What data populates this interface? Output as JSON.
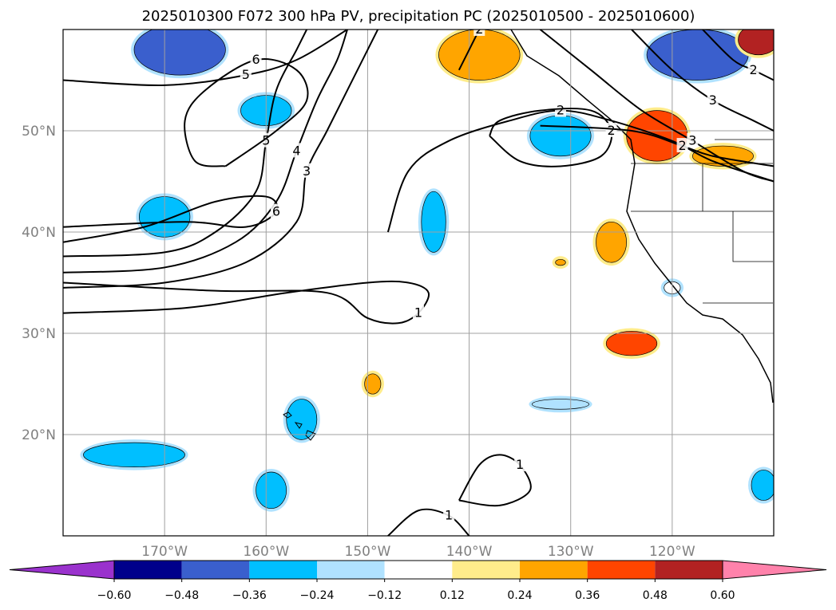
{
  "chart_data": {
    "type": "contour-map",
    "title": "2025010300 F072 300 hPa PV, precipitation PC (2025010500 - 2025010600)",
    "map": {
      "lon_range": [
        -180,
        -110
      ],
      "lat_range": [
        10,
        60
      ],
      "lon_ticks": [
        -170,
        -160,
        -150,
        -140,
        -130,
        -120
      ],
      "lon_tick_labels": [
        "170°W",
        "160°W",
        "150°W",
        "140°W",
        "130°W",
        "120°W"
      ],
      "lat_ticks": [
        20,
        30,
        40,
        50
      ],
      "lat_tick_labels": [
        "20°N",
        "30°N",
        "40°N",
        "50°N"
      ],
      "grid": true
    },
    "colorbar": {
      "levels": [
        -0.6,
        -0.48,
        -0.36,
        -0.24,
        -0.12,
        0.12,
        0.24,
        0.36,
        0.48,
        0.6
      ],
      "tick_labels": [
        "−0.60",
        "−0.48",
        "−0.36",
        "−0.24",
        "−0.12",
        "0.12",
        "0.24",
        "0.36",
        "0.48",
        "0.60"
      ],
      "colors": [
        "#9a32cd",
        "#00008b",
        "#3a5fcd",
        "#00bfff",
        "#b0e2ff",
        "#ffffff",
        "#ffec8b",
        "#ffa500",
        "#ff4500",
        "#b22222",
        "#ff82ab"
      ],
      "extend": "both"
    },
    "pv_contours": [
      {
        "level": 1,
        "label": "1",
        "points": [
          [
            -180,
            32
          ],
          [
            -168,
            32.5
          ],
          [
            -158,
            34
          ],
          [
            -150,
            35
          ],
          [
            -146,
            35
          ],
          [
            -144,
            34
          ],
          [
            -145,
            32
          ],
          [
            -147,
            31
          ],
          [
            -150,
            31.5
          ],
          [
            -154,
            34
          ],
          [
            -165,
            34.2
          ],
          [
            -180,
            35
          ]
        ]
      },
      {
        "level": 3,
        "label": "3",
        "points": [
          [
            -180,
            34.5
          ],
          [
            -170,
            35
          ],
          [
            -162,
            37
          ],
          [
            -157,
            41
          ],
          [
            -156,
            46
          ],
          [
            -154,
            50
          ],
          [
            -152,
            54
          ],
          [
            -150,
            58
          ],
          [
            -149,
            60
          ]
        ]
      },
      {
        "level": 4,
        "label": "4",
        "points": [
          [
            -180,
            36
          ],
          [
            -170,
            36.5
          ],
          [
            -163,
            39
          ],
          [
            -159,
            43
          ],
          [
            -157,
            48
          ],
          [
            -155,
            53
          ],
          [
            -153,
            57
          ],
          [
            -152,
            60
          ]
        ]
      },
      {
        "level": 5,
        "label": "5",
        "points": [
          [
            -180,
            37.6
          ],
          [
            -170,
            38
          ],
          [
            -165,
            40
          ],
          [
            -161,
            44
          ],
          [
            -160,
            49
          ],
          [
            -159,
            54
          ],
          [
            -157,
            58
          ],
          [
            -156,
            60
          ]
        ]
      },
      {
        "level": 6,
        "label": "6",
        "points": [
          [
            -180,
            39
          ],
          [
            -172,
            40.5
          ],
          [
            -165,
            43
          ],
          [
            -160,
            43.5
          ],
          [
            -159,
            42
          ],
          [
            -162,
            40.5
          ],
          [
            -168,
            41
          ],
          [
            -180,
            40.5
          ]
        ]
      },
      {
        "level": 6,
        "label": "6",
        "points": [
          [
            -164,
            46.5
          ],
          [
            -159,
            50
          ],
          [
            -156,
            53
          ],
          [
            -157,
            56
          ],
          [
            -161,
            57
          ],
          [
            -166,
            54
          ],
          [
            -168,
            51
          ],
          [
            -167,
            47
          ],
          [
            -164,
            46.5
          ]
        ]
      },
      {
        "level": 5,
        "label": "5",
        "points": [
          [
            -180,
            55
          ],
          [
            -170,
            54.5
          ],
          [
            -162,
            55.5
          ],
          [
            -157,
            57
          ],
          [
            -152,
            60
          ]
        ]
      },
      {
        "level": 2,
        "label": "2",
        "points": [
          [
            -148,
            40
          ],
          [
            -146,
            46
          ],
          [
            -142,
            49
          ],
          [
            -136,
            51
          ],
          [
            -131,
            52
          ],
          [
            -126,
            51
          ],
          [
            -120,
            49
          ],
          [
            -116,
            47
          ],
          [
            -110,
            45
          ]
        ]
      },
      {
        "level": 2,
        "label": "2",
        "points": [
          [
            -141,
            56
          ],
          [
            -139,
            60
          ]
        ]
      },
      {
        "level": 2,
        "label": "2",
        "points": [
          [
            -138,
            49.5
          ],
          [
            -135,
            47
          ],
          [
            -131,
            46.5
          ],
          [
            -127,
            47.5
          ],
          [
            -126,
            50
          ],
          [
            -128,
            52
          ],
          [
            -133,
            52
          ],
          [
            -137,
            51
          ],
          [
            -138,
            49.5
          ]
        ]
      },
      {
        "level": 2,
        "label": "2",
        "points": [
          [
            -133,
            50.5
          ],
          [
            -124,
            50
          ],
          [
            -119,
            48.5
          ],
          [
            -116,
            47.5
          ],
          [
            -110,
            46.5
          ]
        ]
      },
      {
        "level": 3,
        "label": "3",
        "points": [
          [
            -133,
            60
          ],
          [
            -128,
            56
          ],
          [
            -123,
            52
          ],
          [
            -118,
            49
          ],
          [
            -113,
            46
          ],
          [
            -110,
            45
          ]
        ]
      },
      {
        "level": 3,
        "label": "3",
        "points": [
          [
            -124,
            60
          ],
          [
            -120,
            56
          ],
          [
            -116,
            53
          ],
          [
            -112,
            51
          ],
          [
            -110,
            50
          ]
        ]
      },
      {
        "level": 2,
        "label": "2",
        "points": [
          [
            -117,
            60
          ],
          [
            -114,
            57
          ],
          [
            -112,
            56
          ],
          [
            -110,
            55
          ]
        ]
      },
      {
        "level": 1,
        "label": "1",
        "points": [
          [
            -141,
            13.5
          ],
          [
            -139,
            17
          ],
          [
            -137,
            18
          ],
          [
            -135,
            17
          ],
          [
            -134,
            14.5
          ],
          [
            -137,
            13
          ],
          [
            -141,
            13.5
          ]
        ]
      },
      {
        "level": 1,
        "label": "1",
        "points": [
          [
            -148,
            10
          ],
          [
            -145,
            12.5
          ],
          [
            -142,
            12
          ],
          [
            -140,
            10
          ]
        ]
      }
    ],
    "precip_blobs": [
      {
        "level": -0.48,
        "lon": -168.5,
        "lat": 58,
        "rx": 4.5,
        "ry": 2.5
      },
      {
        "level": -0.36,
        "lon": -170,
        "lat": 41.5,
        "rx": 2.5,
        "ry": 2
      },
      {
        "level": -0.36,
        "lon": -160,
        "lat": 52,
        "rx": 2.5,
        "ry": 1.5
      },
      {
        "level": -0.36,
        "lon": -143.5,
        "lat": 41,
        "rx": 1.2,
        "ry": 3
      },
      {
        "level": -0.36,
        "lon": -131,
        "lat": 49.5,
        "rx": 3,
        "ry": 2
      },
      {
        "level": -0.36,
        "lon": -156.5,
        "lat": 21.5,
        "rx": 1.5,
        "ry": 2
      },
      {
        "level": -0.36,
        "lon": -159.5,
        "lat": 14.5,
        "rx": 1.5,
        "ry": 1.8
      },
      {
        "level": -0.36,
        "lon": -173,
        "lat": 18,
        "rx": 5,
        "ry": 1.2
      },
      {
        "level": -0.24,
        "lon": -131,
        "lat": 23,
        "rx": 2.8,
        "ry": 0.5
      },
      {
        "level": -0.48,
        "lon": -117.5,
        "lat": 57.5,
        "rx": 5,
        "ry": 2.5
      },
      {
        "level": -0.36,
        "lon": -111,
        "lat": 15,
        "rx": 1.2,
        "ry": 1.5
      },
      {
        "level": -0.12,
        "lon": -120,
        "lat": 34.5,
        "rx": 0.8,
        "ry": 0.6
      },
      {
        "level": 0.24,
        "lon": -139,
        "lat": 57.5,
        "rx": 4,
        "ry": 2.5
      },
      {
        "level": 0.36,
        "lon": -121.5,
        "lat": 49.5,
        "rx": 3,
        "ry": 2.5
      },
      {
        "level": 0.24,
        "lon": -115,
        "lat": 47.5,
        "rx": 3,
        "ry": 1
      },
      {
        "level": 0.24,
        "lon": -126,
        "lat": 39,
        "rx": 1.5,
        "ry": 2
      },
      {
        "level": 0.36,
        "lon": -124,
        "lat": 29,
        "rx": 2.5,
        "ry": 1.2
      },
      {
        "level": 0.24,
        "lon": -149.5,
        "lat": 25,
        "rx": 0.8,
        "ry": 1
      },
      {
        "level": 0.24,
        "lon": -131,
        "lat": 37,
        "rx": 0.5,
        "ry": 0.3
      },
      {
        "level": 0.48,
        "lon": -111.5,
        "lat": 59,
        "rx": 2,
        "ry": 1.5
      }
    ]
  }
}
